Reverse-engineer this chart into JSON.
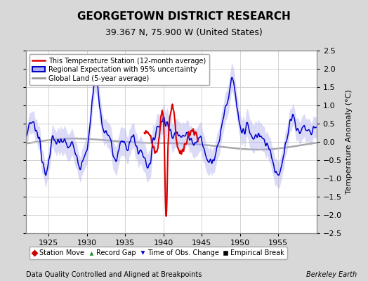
{
  "title": "GEORGETOWN DISTRICT RESEARCH",
  "subtitle": "39.367 N, 75.900 W (United States)",
  "xlabel_bottom": "Data Quality Controlled and Aligned at Breakpoints",
  "xlabel_right": "Berkeley Earth",
  "ylabel_right": "Temperature Anomaly (°C)",
  "xlim": [
    1922.0,
    1960.0
  ],
  "ylim": [
    -2.5,
    2.5
  ],
  "xticks": [
    1925,
    1930,
    1935,
    1940,
    1945,
    1950,
    1955
  ],
  "yticks": [
    -2.5,
    -2,
    -1.5,
    -1,
    -0.5,
    0,
    0.5,
    1,
    1.5,
    2,
    2.5
  ],
  "bg_color": "#d8d8d8",
  "plot_bg_color": "#ffffff",
  "grid_color": "#cccccc",
  "line_color_station": "#dd0000",
  "line_color_regional": "#0000cc",
  "fill_color_regional": "#b0b0ee",
  "line_color_global": "#999999",
  "title_fontsize": 11,
  "subtitle_fontsize": 9,
  "legend_items": [
    {
      "label": "This Temperature Station (12-month average)",
      "color": "#dd0000",
      "lw": 1.8
    },
    {
      "label": "Regional Expectation with 95% uncertainty",
      "color": "#0000cc",
      "lw": 1.5
    },
    {
      "label": "Global Land (5-year average)",
      "color": "#999999",
      "lw": 2.0
    }
  ],
  "marker_items": [
    {
      "label": "Station Move",
      "color": "#cc0000",
      "marker": "D"
    },
    {
      "label": "Record Gap",
      "color": "#228B22",
      "marker": "^"
    },
    {
      "label": "Time of Obs. Change",
      "color": "#0000cc",
      "marker": "v"
    },
    {
      "label": "Empirical Break",
      "color": "#000000",
      "marker": "s"
    }
  ]
}
